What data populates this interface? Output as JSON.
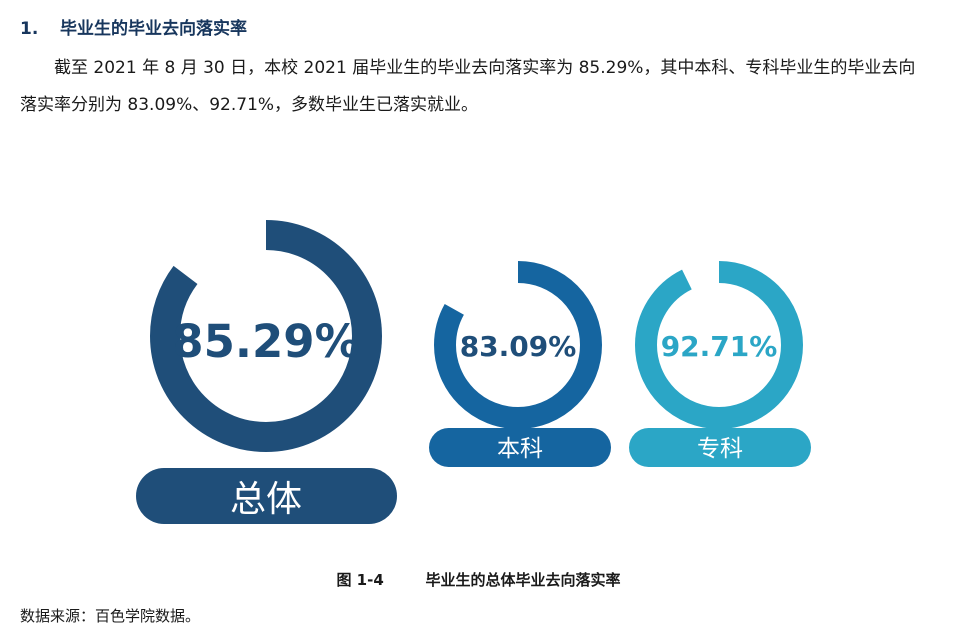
{
  "section": {
    "number": "1.",
    "title": "毕业生的毕业去向落实率"
  },
  "paragraph": "截至 2021 年 8 月 30 日，本校 2021 届毕业生的毕业去向落实率为 85.29%，其中本科、专科毕业生的毕业去向落实率分别为 83.09%、92.71%，多数毕业生已落实就业。",
  "chart_data": {
    "type": "donut",
    "series": [
      {
        "label": "总体",
        "value": 85.29,
        "display": "85.29%",
        "color": "#1f4e79"
      },
      {
        "label": "本科",
        "value": 83.09,
        "display": "83.09%",
        "color": "#1565a0"
      },
      {
        "label": "专科",
        "value": 92.71,
        "display": "92.71%",
        "color": "#2ba6c6"
      }
    ]
  },
  "caption": {
    "figure": "图 1-4",
    "title": "毕业生的总体毕业去向落实率"
  },
  "source": "数据来源：百色学院数据。"
}
